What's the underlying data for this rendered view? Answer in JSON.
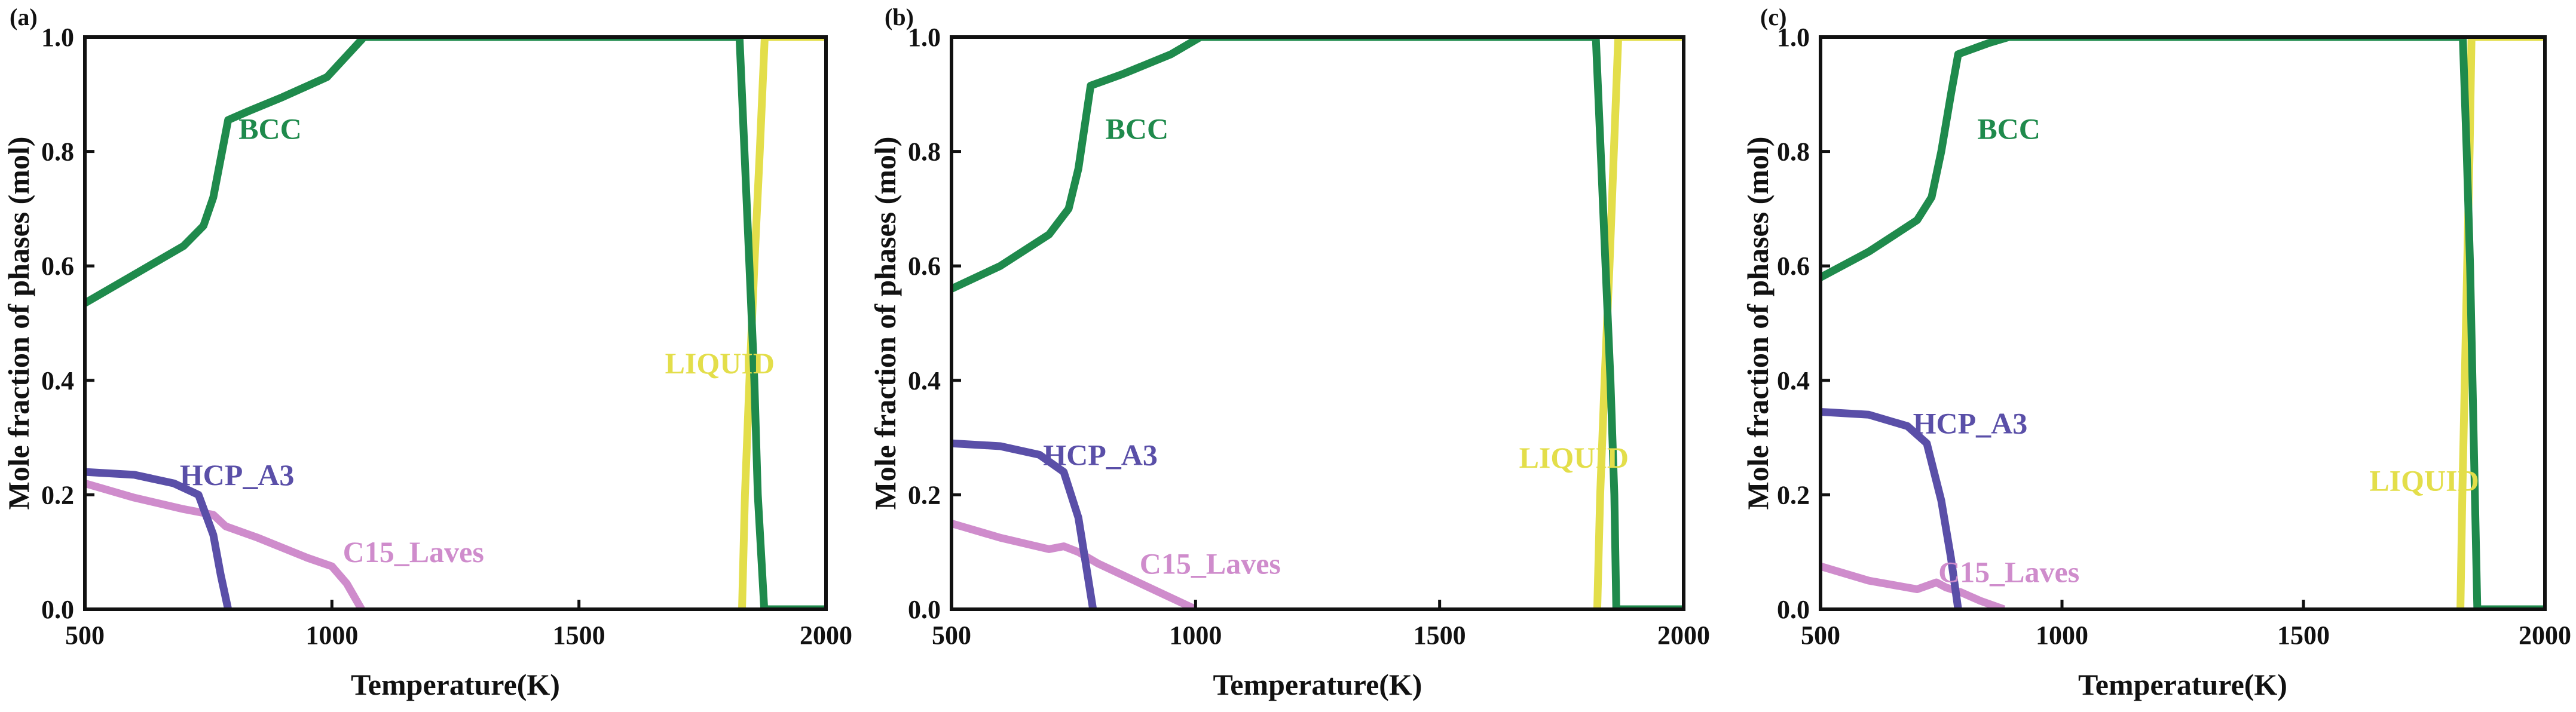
{
  "colors": {
    "BCC": "#1f8a4c",
    "LIQUID": "#e3de4a",
    "HCP_A3": "#5a4fa8",
    "C15_Laves": "#cf8ccc"
  },
  "chart_data": [
    {
      "type": "line",
      "panel_label": "(a)",
      "xlabel": "Temperature(K)",
      "ylabel": "Mole fraction of phases (mol)",
      "xlim": [
        500,
        2000
      ],
      "ylim": [
        0,
        1.0
      ],
      "x_ticks": [
        500,
        1000,
        1500,
        2000
      ],
      "x_tick_labels": [
        "500",
        "1000",
        "1500",
        "2000"
      ],
      "y_ticks": [
        0,
        0.2,
        0.4,
        0.6,
        0.8,
        1.0
      ],
      "y_tick_labels": [
        "0.0",
        "0.2",
        "0.4",
        "0.6",
        "0.8",
        "1.0"
      ],
      "series": [
        {
          "name": "BCC",
          "label": "BCC",
          "label_pos": [
            875,
            0.84
          ],
          "x": [
            500,
            600,
            700,
            740,
            760,
            790,
            830,
            900,
            990,
            1065,
            1100,
            1500,
            1820,
            1825,
            1835,
            1845,
            1855,
            1862,
            1875,
            1890,
            2000
          ],
          "y": [
            0.535,
            0.585,
            0.635,
            0.67,
            0.72,
            0.855,
            0.87,
            0.895,
            0.93,
            1.0,
            1.0,
            1.0,
            1.0,
            1.0,
            0.8,
            0.6,
            0.4,
            0.2,
            0.0,
            0.0,
            0.0
          ]
        },
        {
          "name": "LIQUID",
          "label": "LIQUID",
          "label_pos": [
            1785,
            0.43
          ],
          "x": [
            1830,
            1836,
            1845,
            1855,
            1866,
            1876,
            1880,
            1900,
            2000
          ],
          "y": [
            0.0,
            0.2,
            0.4,
            0.6,
            0.8,
            1.0,
            1.0,
            1.0,
            1.0
          ]
        },
        {
          "name": "HCP_A3",
          "label": "HCP_A3",
          "label_pos": [
            808,
            0.235
          ],
          "x": [
            500,
            600,
            680,
            730,
            760,
            775,
            790
          ],
          "y": [
            0.24,
            0.235,
            0.22,
            0.2,
            0.13,
            0.06,
            0.0
          ]
        },
        {
          "name": "C15_Laves",
          "label": "C15_Laves",
          "label_pos": [
            1165,
            0.1
          ],
          "x": [
            500,
            600,
            700,
            760,
            785,
            850,
            950,
            1000,
            1030,
            1060
          ],
          "y": [
            0.22,
            0.195,
            0.175,
            0.165,
            0.145,
            0.125,
            0.09,
            0.075,
            0.045,
            0.0
          ]
        }
      ]
    },
    {
      "type": "line",
      "panel_label": "(b)",
      "xlabel": "Temperature(K)",
      "ylabel": "Mole fraction of phases (mol)",
      "xlim": [
        500,
        2000
      ],
      "ylim": [
        0,
        1.0
      ],
      "x_ticks": [
        500,
        1000,
        1500,
        2000
      ],
      "x_tick_labels": [
        "500",
        "1000",
        "1500",
        "2000"
      ],
      "y_ticks": [
        0,
        0.2,
        0.4,
        0.6,
        0.8,
        1.0
      ],
      "y_tick_labels": [
        "0.0",
        "0.2",
        "0.4",
        "0.6",
        "0.8",
        "1.0"
      ],
      "series": [
        {
          "name": "BCC",
          "label": "BCC",
          "label_pos": [
            880,
            0.84
          ],
          "x": [
            500,
            600,
            700,
            740,
            760,
            785,
            850,
            950,
            1010,
            1100,
            1500,
            1815,
            1820,
            1830,
            1840,
            1850,
            1858,
            1862,
            1880,
            2000
          ],
          "y": [
            0.56,
            0.6,
            0.655,
            0.7,
            0.77,
            0.915,
            0.935,
            0.97,
            1.0,
            1.0,
            1.0,
            1.0,
            1.0,
            0.8,
            0.6,
            0.4,
            0.2,
            0.0,
            0.0,
            0.0
          ]
        },
        {
          "name": "LIQUID",
          "label": "LIQUID",
          "label_pos": [
            1775,
            0.265
          ],
          "x": [
            1823,
            1829,
            1838,
            1848,
            1857,
            1866,
            1880,
            2000
          ],
          "y": [
            0.0,
            0.2,
            0.4,
            0.6,
            0.8,
            1.0,
            1.0,
            1.0
          ]
        },
        {
          "name": "HCP_A3",
          "label": "HCP_A3",
          "label_pos": [
            805,
            0.27
          ],
          "x": [
            500,
            600,
            680,
            730,
            760,
            775,
            790
          ],
          "y": [
            0.29,
            0.285,
            0.27,
            0.24,
            0.16,
            0.08,
            0.0
          ]
        },
        {
          "name": "C15_Laves",
          "label": "C15_Laves",
          "label_pos": [
            1030,
            0.08
          ],
          "x": [
            500,
            600,
            700,
            730,
            760,
            800,
            900,
            1000
          ],
          "y": [
            0.15,
            0.125,
            0.105,
            0.11,
            0.1,
            0.08,
            0.04,
            0.0
          ]
        }
      ]
    },
    {
      "type": "line",
      "panel_label": "(c)",
      "xlabel": "Temperature(K)",
      "ylabel": "Mole fraction of phases (mol)",
      "xlim": [
        500,
        2000
      ],
      "ylim": [
        0,
        1.0
      ],
      "x_ticks": [
        500,
        1000,
        1500,
        2000
      ],
      "x_tick_labels": [
        "500",
        "1000",
        "1500",
        "2000"
      ],
      "y_ticks": [
        0,
        0.2,
        0.4,
        0.6,
        0.8,
        1.0
      ],
      "y_tick_labels": [
        "0.0",
        "0.2",
        "0.4",
        "0.6",
        "0.8",
        "1.0"
      ],
      "series": [
        {
          "name": "BCC",
          "label": "BCC",
          "label_pos": [
            890,
            0.84
          ],
          "x": [
            500,
            600,
            700,
            730,
            750,
            770,
            785,
            850,
            890,
            1000,
            1500,
            1825,
            1830,
            1838,
            1845,
            1850,
            1855,
            1860,
            1880,
            2000
          ],
          "y": [
            0.58,
            0.625,
            0.68,
            0.72,
            0.8,
            0.9,
            0.97,
            0.99,
            1.0,
            1.0,
            1.0,
            1.0,
            1.0,
            0.8,
            0.6,
            0.4,
            0.2,
            0.0,
            0.0,
            0.0
          ]
        },
        {
          "name": "LIQUID",
          "label": "LIQUID",
          "label_pos": [
            1750,
            0.225
          ],
          "x": [
            1825,
            1829,
            1834,
            1839,
            1844,
            1848,
            1870,
            2000
          ],
          "y": [
            0.0,
            0.2,
            0.4,
            0.6,
            0.8,
            1.0,
            1.0,
            1.0
          ]
        },
        {
          "name": "HCP_A3",
          "label": "HCP_A3",
          "label_pos": [
            810,
            0.325
          ],
          "x": [
            500,
            600,
            680,
            720,
            750,
            770,
            785
          ],
          "y": [
            0.345,
            0.34,
            0.32,
            0.29,
            0.19,
            0.09,
            0.0
          ]
        },
        {
          "name": "C15_Laves",
          "label": "C15_Laves",
          "label_pos": [
            890,
            0.065
          ],
          "x": [
            500,
            600,
            700,
            740,
            760,
            790,
            830,
            880
          ],
          "y": [
            0.075,
            0.05,
            0.035,
            0.047,
            0.038,
            0.03,
            0.015,
            0.0
          ]
        }
      ]
    }
  ]
}
